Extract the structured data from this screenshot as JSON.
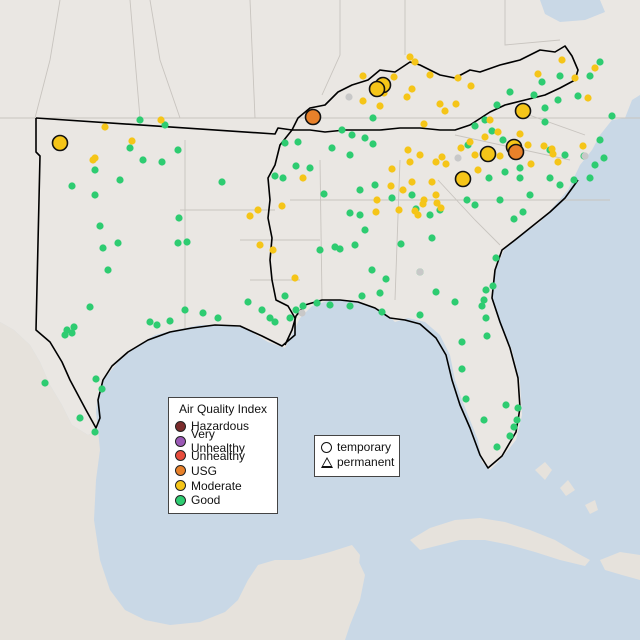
{
  "colors": {
    "water": "#c9d8e6",
    "land": "#eae7e3",
    "good": "#2ecc71",
    "moderate": "#f5c518",
    "usg": "#e8812a",
    "unhealthy": "#e74c3c",
    "very_unhealthy": "#9b59b6",
    "hazardous": "#7b2c2c",
    "no_data": "#c8c8c8"
  },
  "legend_aqi": {
    "title": "Air Quality Index",
    "items": [
      {
        "label": "Hazardous",
        "color": "#7b2c2c"
      },
      {
        "label": "Very Unhealthy",
        "color": "#9b59b6"
      },
      {
        "label": "Unhealthy",
        "color": "#e74c3c"
      },
      {
        "label": "USG",
        "color": "#e8812a"
      },
      {
        "label": "Moderate",
        "color": "#f5c518"
      },
      {
        "label": "Good",
        "color": "#2ecc71"
      }
    ]
  },
  "legend_type": {
    "items": [
      {
        "label": "temporary",
        "shape": "circle"
      },
      {
        "label": "permanent",
        "shape": "triangle"
      }
    ]
  }
}
